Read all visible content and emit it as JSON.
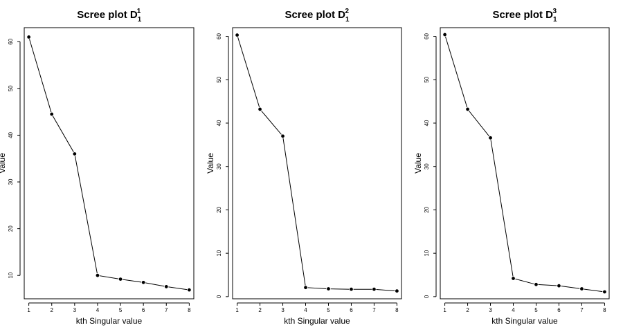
{
  "chart_data": [
    {
      "type": "line",
      "title": "Scree plot D",
      "title_sub": "1",
      "title_sup": "1",
      "xlabel": "kth Singular value",
      "ylabel": "Value",
      "x": [
        1,
        2,
        3,
        4,
        5,
        6,
        7,
        8
      ],
      "values": [
        61.0,
        44.5,
        36.0,
        10.0,
        9.2,
        8.5,
        7.6,
        6.9
      ],
      "xlim": [
        0.8,
        8.2
      ],
      "ylim": [
        5,
        63
      ],
      "xticks": [
        1,
        2,
        3,
        4,
        5,
        6,
        7,
        8
      ],
      "yticks": [
        10,
        20,
        30,
        40,
        50,
        60
      ],
      "grid": false,
      "color": "#000000"
    },
    {
      "type": "line",
      "title": "Scree plot D",
      "title_sub": "1",
      "title_sup": "2",
      "xlabel": "kth Singular value",
      "ylabel": "Value",
      "x": [
        1,
        2,
        3,
        4,
        5,
        6,
        7,
        8
      ],
      "values": [
        60.3,
        43.2,
        37.0,
        2.1,
        1.8,
        1.7,
        1.7,
        1.3
      ],
      "xlim": [
        0.8,
        8.2
      ],
      "ylim": [
        -0.5,
        62
      ],
      "xticks": [
        1,
        2,
        3,
        4,
        5,
        6,
        7,
        8
      ],
      "yticks": [
        0,
        10,
        20,
        30,
        40,
        50,
        60
      ],
      "grid": false,
      "color": "#000000"
    },
    {
      "type": "line",
      "title": "Scree plot D",
      "title_sub": "1",
      "title_sup": "3",
      "xlabel": "kth Singular value",
      "ylabel": "Value",
      "x": [
        1,
        2,
        3,
        4,
        5,
        6,
        7,
        8
      ],
      "values": [
        60.4,
        43.2,
        36.6,
        4.2,
        2.8,
        2.5,
        1.8,
        1.1
      ],
      "xlim": [
        0.8,
        8.2
      ],
      "ylim": [
        -0.5,
        62
      ],
      "xticks": [
        1,
        2,
        3,
        4,
        5,
        6,
        7,
        8
      ],
      "yticks": [
        0,
        10,
        20,
        30,
        40,
        50,
        60
      ],
      "grid": false,
      "color": "#000000"
    }
  ]
}
